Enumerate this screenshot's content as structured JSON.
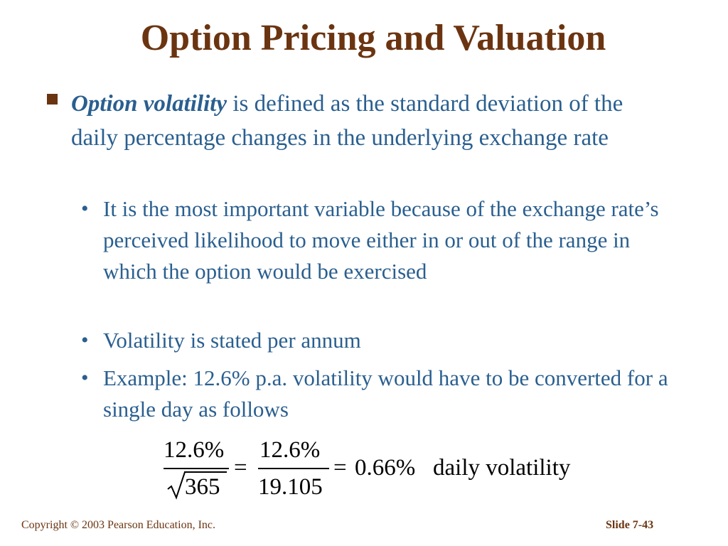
{
  "slide": {
    "title": "Option Pricing and Valuation",
    "bullet": {
      "term": "Option volatility",
      "text": " is defined as the standard deviation of the daily percentage changes in the underlying exchange rate"
    },
    "sub_bullets": [
      "It is the most important variable because of the exchange rate’s perceived likelihood to move either in or out of the range in which the option would be exercised",
      "Volatility is stated per annum",
      "Example: 12.6% p.a. volatility would have to be converted for a single day as follows"
    ],
    "formula": {
      "num1": "12.6%",
      "den1": "365",
      "eq1": "=",
      "num2": "12.6%",
      "den2": "19.105",
      "eq2": "=",
      "result": "0.66%",
      "label": "daily volatility"
    }
  },
  "footer": {
    "copyright": "Copyright © 2003 Pearson Education, Inc.",
    "slide_number": "Slide 7-43"
  },
  "colors": {
    "title": "#6b3410",
    "body": "#2a5f8f"
  }
}
